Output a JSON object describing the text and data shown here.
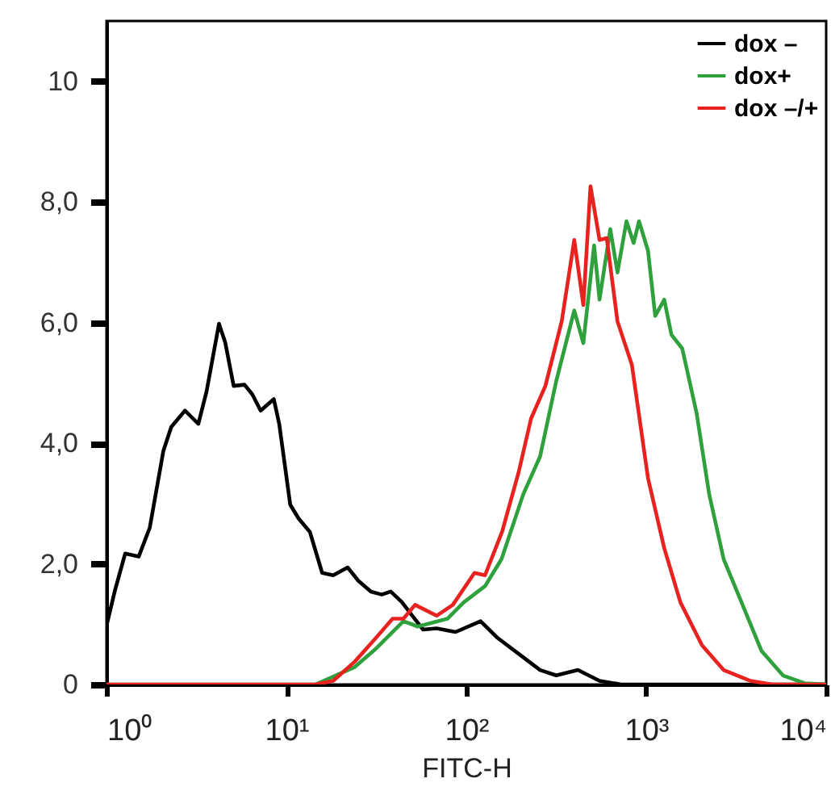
{
  "chart_data": {
    "type": "line",
    "xlabel": "FITC-H",
    "log": "x",
    "xlim": [
      1,
      10000
    ],
    "xticks": [
      {
        "value": 1,
        "label": "10⁰"
      },
      {
        "value": 10,
        "label": "10¹"
      },
      {
        "value": 100,
        "label": "10²"
      },
      {
        "value": 1000,
        "label": "10³"
      },
      {
        "value": 10000,
        "label": "10⁴"
      }
    ],
    "ylim": [
      0,
      11
    ],
    "yticks": [
      0,
      {
        "value": 2,
        "label": "2,0"
      },
      {
        "value": 4,
        "label": "4,0"
      },
      {
        "value": 6,
        "label": "6,0"
      },
      {
        "value": 8,
        "label": "8,0"
      },
      10
    ],
    "grid": false,
    "legend": "top right",
    "line_style": "solid",
    "marker": "none",
    "series": [
      {
        "name": "dox –",
        "color": "#000000",
        "x": [
          1,
          1.11,
          1.27,
          1.51,
          1.74,
          2.07,
          2.29,
          2.73,
          3.24,
          3.6,
          4.22,
          4.57,
          5.09,
          5.85,
          6.46,
          7.19,
          8.51,
          9.12,
          10.5,
          11.7,
          13.5,
          15.8,
          18.2,
          21.9,
          25.1,
          29.5,
          33.9,
          38,
          43.7,
          50.1,
          57.5,
          68.4,
          87.1,
          120,
          148,
          195,
          257,
          316,
          417,
          550,
          724,
          10000
        ],
        "values": [
          0.97,
          1.54,
          2.17,
          2.12,
          2.6,
          3.87,
          4.27,
          4.54,
          4.32,
          4.86,
          5.98,
          5.67,
          4.95,
          4.97,
          4.81,
          4.54,
          4.73,
          4.32,
          2.98,
          2.75,
          2.53,
          1.85,
          1.81,
          1.94,
          1.72,
          1.54,
          1.49,
          1.54,
          1.37,
          1.14,
          0.91,
          0.93,
          0.87,
          1.05,
          0.78,
          0.51,
          0.24,
          0.15,
          0.24,
          0.06,
          0,
          0
        ]
      },
      {
        "name": "dox+",
        "color": "#2ea03c",
        "x": [
          1,
          14.5,
          24,
          31.6,
          44.7,
          53.7,
          78.5,
          96.6,
          127,
          157,
          207,
          257,
          316,
          398,
          447,
          513,
          550,
          631,
          692,
          776,
          851,
          912,
          1023,
          1122,
          1259,
          1380,
          1585,
          1905,
          2239,
          2692,
          3388,
          4365,
          5754,
          7586,
          10000
        ],
        "values": [
          0,
          0,
          0.29,
          0.6,
          1.05,
          0.96,
          1.09,
          1.36,
          1.63,
          2.08,
          3.15,
          3.78,
          5.03,
          6.2,
          5.66,
          7.28,
          6.38,
          7.55,
          6.83,
          7.68,
          7.32,
          7.68,
          7.19,
          6.11,
          6.38,
          5.8,
          5.57,
          4.5,
          3.15,
          2.08,
          1.36,
          0.56,
          0.15,
          0.02,
          0
        ]
      },
      {
        "name": "dox –/+",
        "color": "#e8231f",
        "x": [
          1,
          14.5,
          18.2,
          24,
          31.6,
          38.9,
          44.7,
          51.9,
          68.4,
          84.1,
          111,
          127,
          158,
          195,
          229,
          275,
          339,
          398,
          447,
          490,
          550,
          603,
          692,
          832,
          1023,
          1259,
          1549,
          2042,
          2692,
          3802,
          5012,
          10000
        ],
        "values": [
          0,
          0,
          0.06,
          0.38,
          0.78,
          1.09,
          1.09,
          1.32,
          1.14,
          1.32,
          1.85,
          1.81,
          2.53,
          3.51,
          4.41,
          4.95,
          6.02,
          7.37,
          6.29,
          8.26,
          7.37,
          7.4,
          6.02,
          5.3,
          3.42,
          2.26,
          1.36,
          0.65,
          0.24,
          0.06,
          0,
          0
        ]
      }
    ]
  }
}
